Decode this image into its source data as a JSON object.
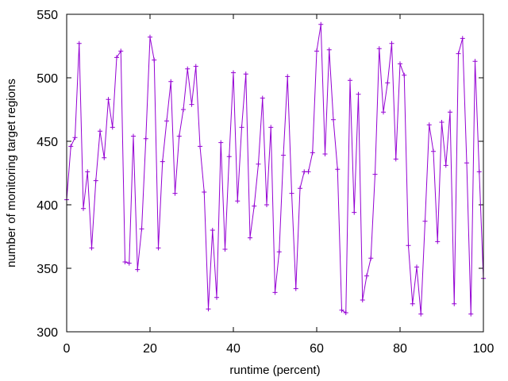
{
  "chart_data": {
    "type": "line",
    "xlabel": "runtime (percent)",
    "ylabel": "number of monitoring target regions",
    "xlim": [
      0,
      100
    ],
    "ylim": [
      300,
      550
    ],
    "xticks": [
      0,
      20,
      40,
      60,
      80,
      100
    ],
    "yticks": [
      300,
      350,
      400,
      450,
      500,
      550
    ],
    "grid": false,
    "legend": "none",
    "series": [
      {
        "color": "#9400d3",
        "marker": "plus",
        "x": [
          0,
          1,
          2,
          3,
          4,
          5,
          6,
          7,
          8,
          9,
          10,
          11,
          12,
          13,
          14,
          15,
          16,
          17,
          18,
          19,
          20,
          21,
          22,
          23,
          24,
          25,
          26,
          27,
          28,
          29,
          30,
          31,
          32,
          33,
          34,
          35,
          36,
          37,
          38,
          39,
          40,
          41,
          42,
          43,
          44,
          45,
          46,
          47,
          48,
          49,
          50,
          51,
          52,
          53,
          54,
          55,
          56,
          57,
          58,
          59,
          60,
          61,
          62,
          63,
          64,
          65,
          66,
          67,
          68,
          69,
          70,
          71,
          72,
          73,
          74,
          75,
          76,
          77,
          78,
          79,
          80,
          81,
          82,
          83,
          84,
          85,
          86,
          87,
          88,
          89,
          90,
          91,
          92,
          93,
          94,
          95,
          96,
          97,
          98,
          99,
          100
        ],
        "y": [
          404,
          446,
          453,
          527,
          397,
          426,
          366,
          419,
          458,
          437,
          483,
          461,
          516,
          521,
          355,
          354,
          454,
          349,
          381,
          452,
          532,
          514,
          366,
          434,
          466,
          497,
          409,
          454,
          475,
          507,
          479,
          509,
          446,
          410,
          318,
          380,
          327,
          449,
          365,
          438,
          504,
          403,
          461,
          503,
          374,
          399,
          432,
          484,
          400,
          461,
          331,
          363,
          439,
          501,
          409,
          334,
          413,
          426,
          426,
          441,
          521,
          542,
          440,
          522,
          467,
          428,
          317,
          315,
          498,
          394,
          487,
          325,
          344,
          358,
          424,
          523,
          473,
          496,
          527,
          436,
          511,
          502,
          368,
          322,
          351,
          314,
          387,
          463,
          442,
          371,
          465,
          431,
          473,
          322,
          519,
          531,
          433,
          314,
          513,
          426,
          342
        ]
      }
    ]
  }
}
